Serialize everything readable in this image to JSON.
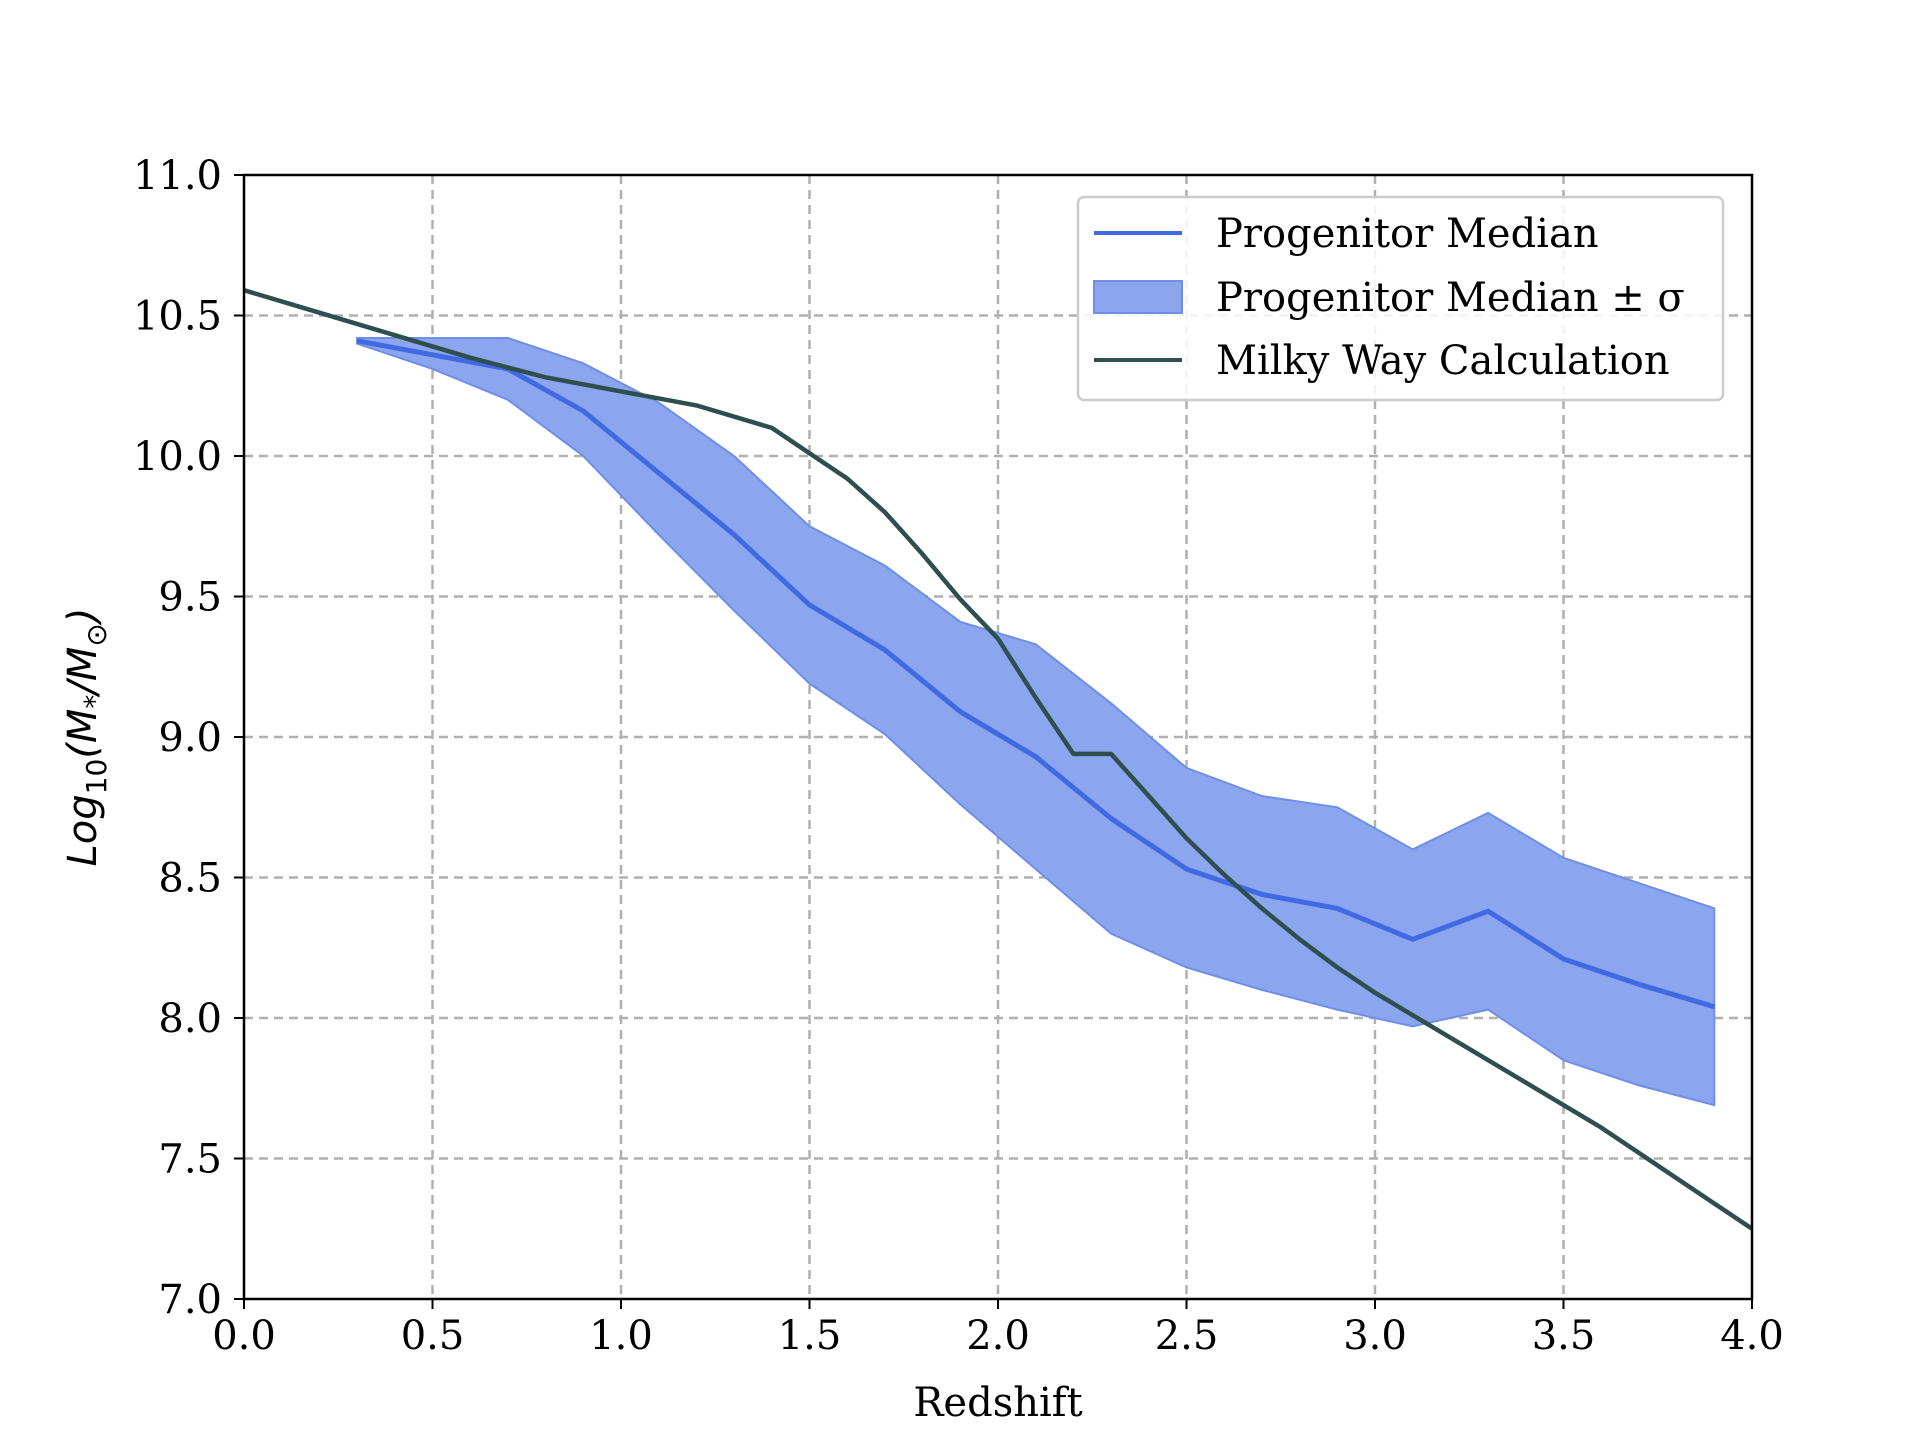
{
  "chart_data": {
    "type": "line",
    "xlabel": "Redshift",
    "ylabel": {
      "main": "Log",
      "sub": "10",
      "expr": "(M",
      "star": "*",
      "slash": "/M",
      "sun": "⊙",
      "close": ")"
    },
    "xlim": [
      0.0,
      4.0
    ],
    "ylim": [
      7.0,
      11.0
    ],
    "xticks": [
      0.0,
      0.5,
      1.0,
      1.5,
      2.0,
      2.5,
      3.0,
      3.5,
      4.0
    ],
    "yticks": [
      7.0,
      7.5,
      8.0,
      8.5,
      9.0,
      9.5,
      10.0,
      10.5,
      11.0
    ],
    "xtick_labels": [
      "0.0",
      "0.5",
      "1.0",
      "1.5",
      "2.0",
      "2.5",
      "3.0",
      "3.5",
      "4.0"
    ],
    "ytick_labels": [
      "7.0",
      "7.5",
      "8.0",
      "8.5",
      "9.0",
      "9.5",
      "10.0",
      "10.5",
      "11.0"
    ],
    "grid": true,
    "legend_position": "top-right",
    "series": [
      {
        "name": "Progenitor Median",
        "kind": "line",
        "color": "#4169e1",
        "x": [
          0.3,
          0.5,
          0.7,
          0.9,
          1.1,
          1.3,
          1.5,
          1.7,
          1.9,
          2.1,
          2.3,
          2.5,
          2.7,
          2.9,
          3.1,
          3.3,
          3.5,
          3.7,
          3.9
        ],
        "y": [
          10.41,
          10.36,
          10.31,
          10.16,
          9.94,
          9.72,
          9.47,
          9.31,
          9.09,
          8.93,
          8.71,
          8.53,
          8.44,
          8.39,
          8.28,
          8.38,
          8.21,
          8.12,
          8.04
        ]
      },
      {
        "name": "Progenitor Median ± σ",
        "kind": "band",
        "color": "#8ba5ee",
        "edge_color": "#6f8fe6",
        "x": [
          0.3,
          0.5,
          0.7,
          0.9,
          1.1,
          1.3,
          1.5,
          1.7,
          1.9,
          2.1,
          2.3,
          2.5,
          2.7,
          2.9,
          3.1,
          3.3,
          3.5,
          3.7,
          3.9
        ],
        "lower": [
          10.4,
          10.31,
          10.2,
          10.0,
          9.72,
          9.45,
          9.19,
          9.01,
          8.76,
          8.53,
          8.3,
          8.18,
          8.1,
          8.03,
          7.97,
          8.03,
          7.85,
          7.76,
          7.69
        ],
        "upper": [
          10.42,
          10.42,
          10.42,
          10.33,
          10.19,
          10.0,
          9.75,
          9.61,
          9.41,
          9.33,
          9.12,
          8.89,
          8.79,
          8.75,
          8.6,
          8.73,
          8.57,
          8.48,
          8.39
        ]
      },
      {
        "name": "Milky Way Calculation",
        "kind": "line",
        "color": "#2f4f4f",
        "x": [
          0.0,
          0.2,
          0.4,
          0.6,
          0.8,
          1.0,
          1.2,
          1.4,
          1.5,
          1.6,
          1.7,
          1.8,
          1.9,
          2.0,
          2.1,
          2.2,
          2.3,
          2.4,
          2.5,
          2.6,
          2.7,
          2.8,
          2.9,
          3.0,
          3.2,
          3.4,
          3.6,
          3.8,
          4.0
        ],
        "y": [
          10.59,
          10.51,
          10.43,
          10.35,
          10.28,
          10.23,
          10.18,
          10.1,
          10.01,
          9.92,
          9.8,
          9.65,
          9.49,
          9.35,
          9.14,
          8.94,
          8.94,
          8.79,
          8.64,
          8.51,
          8.39,
          8.28,
          8.18,
          8.09,
          7.93,
          7.77,
          7.61,
          7.43,
          7.25
        ]
      }
    ]
  }
}
